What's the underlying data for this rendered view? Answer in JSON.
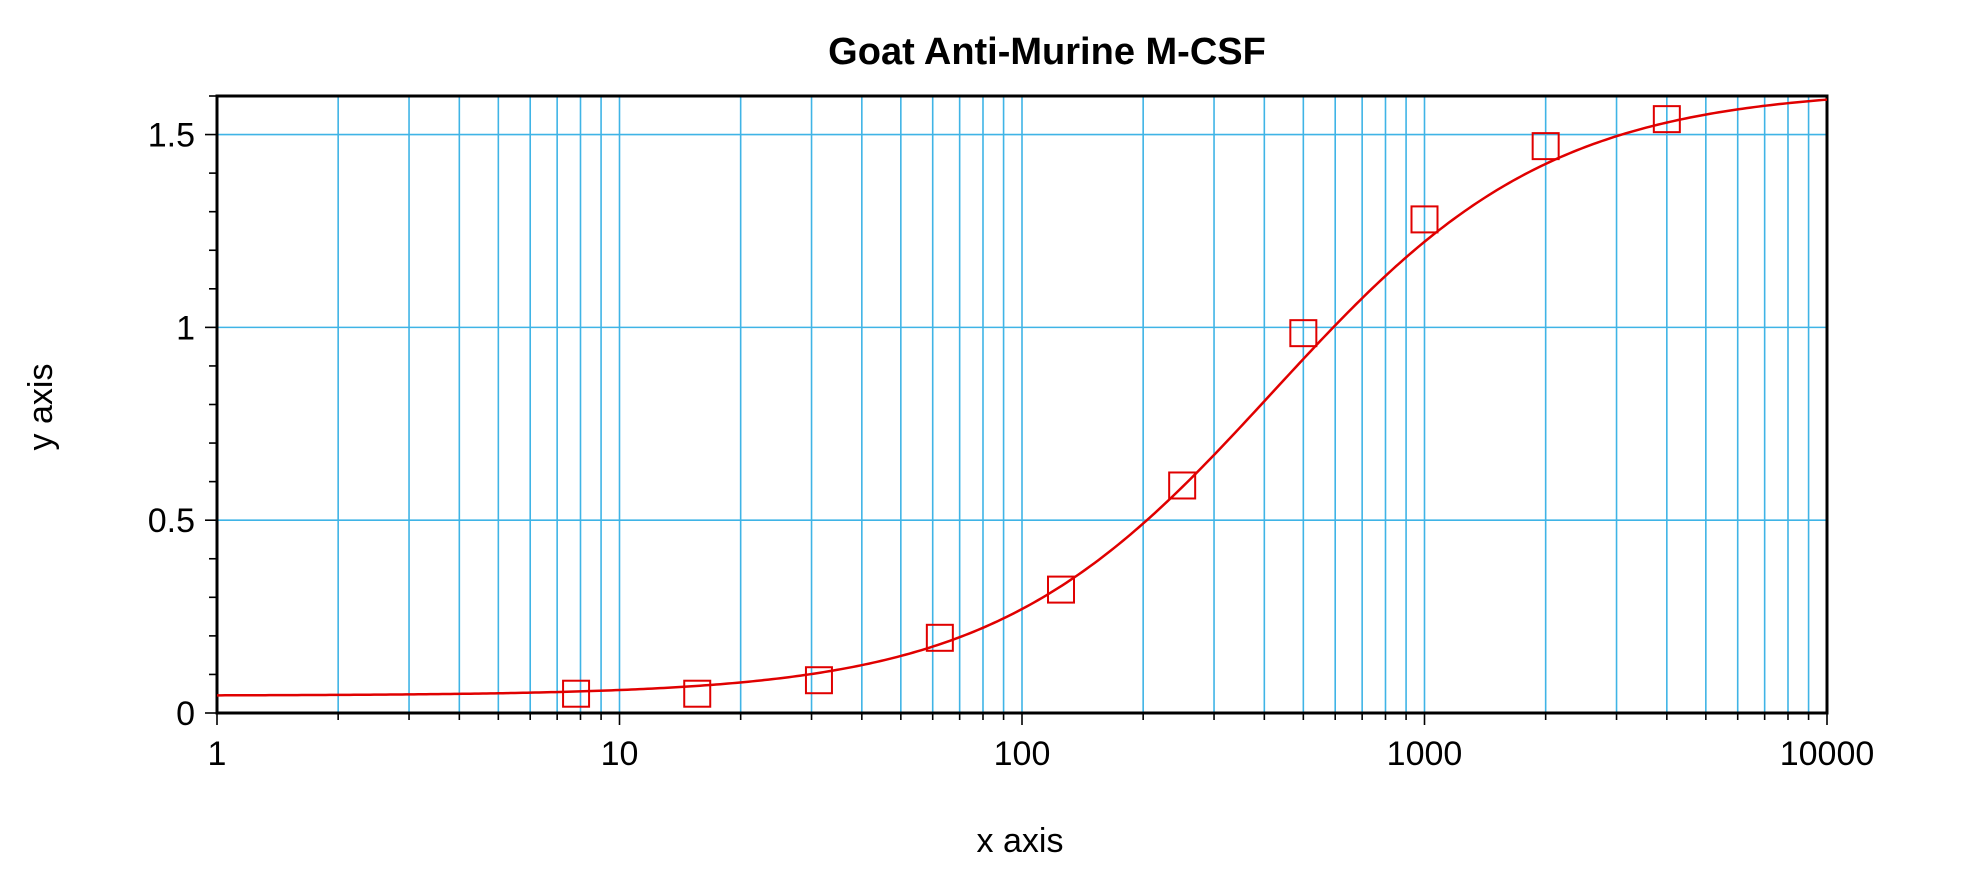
{
  "chart_data": {
    "type": "scatter",
    "title": "Goat Anti-Murine M-CSF",
    "xlabel": "x axis",
    "ylabel": "y axis",
    "xscale": "log",
    "xlim": [
      1,
      10000
    ],
    "ylim": [
      0,
      1.6
    ],
    "x_ticks": [
      "1",
      "10",
      "100",
      "1000",
      "10000"
    ],
    "y_ticks": [
      "0",
      "0.5",
      "1",
      "1.5"
    ],
    "grid": true,
    "series": [
      {
        "marker": "square",
        "color": "#e00000",
        "points": [
          {
            "x": 7.8,
            "y": 0.05
          },
          {
            "x": 15.6,
            "y": 0.05
          },
          {
            "x": 31.3,
            "y": 0.085
          },
          {
            "x": 62.5,
            "y": 0.195
          },
          {
            "x": 125,
            "y": 0.32
          },
          {
            "x": 250,
            "y": 0.59
          },
          {
            "x": 500,
            "y": 0.985
          },
          {
            "x": 1000,
            "y": 1.28
          },
          {
            "x": 2000,
            "y": 1.47
          },
          {
            "x": 4000,
            "y": 1.54
          }
        ]
      }
    ],
    "fit_curve": {
      "type": "4PL",
      "color": "#e00000",
      "bottom": 0.045,
      "top": 1.62,
      "ec50": 420,
      "hill": 1.25
    },
    "colors": {
      "grid": "#3fb4e6",
      "frame": "#000000",
      "series": "#e00000"
    }
  }
}
